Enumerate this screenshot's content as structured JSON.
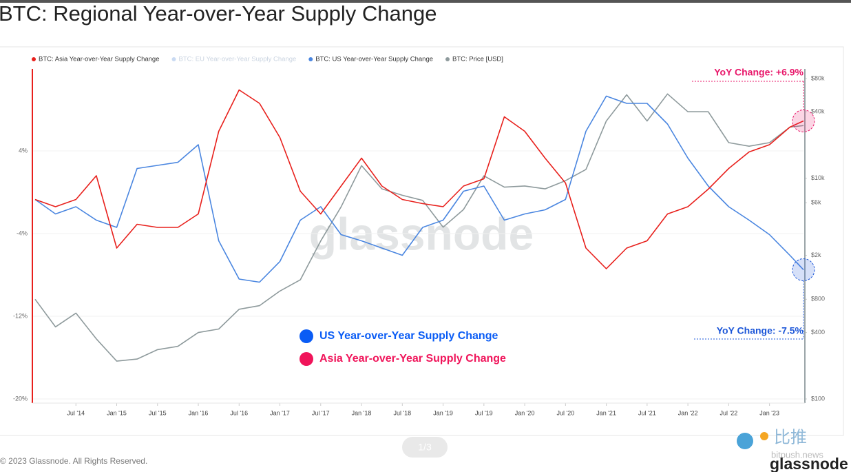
{
  "chart_data": {
    "type": "line",
    "title": "BTC: Regional Year-over-Year Supply Change",
    "watermark": "glassnode",
    "x": [
      "2014-01",
      "2014-04",
      "2014-07",
      "2014-10",
      "2015-01",
      "2015-04",
      "2015-07",
      "2015-10",
      "2016-01",
      "2016-04",
      "2016-07",
      "2016-10",
      "2017-01",
      "2017-04",
      "2017-07",
      "2017-10",
      "2018-01",
      "2018-04",
      "2018-07",
      "2018-10",
      "2019-01",
      "2019-04",
      "2019-07",
      "2019-10",
      "2020-01",
      "2020-04",
      "2020-07",
      "2020-10",
      "2021-01",
      "2021-04",
      "2021-07",
      "2021-10",
      "2022-01",
      "2022-04",
      "2022-07",
      "2022-10",
      "2023-01",
      "2023-04",
      "2023-06"
    ],
    "xlim": [
      "2014-01",
      "2023-06"
    ],
    "xticks": [
      {
        "value": "2014-07",
        "label": "Jul '14"
      },
      {
        "value": "2015-01",
        "label": "Jan '15"
      },
      {
        "value": "2015-07",
        "label": "Jul '15"
      },
      {
        "value": "2016-01",
        "label": "Jan '16"
      },
      {
        "value": "2016-07",
        "label": "Jul '16"
      },
      {
        "value": "2017-01",
        "label": "Jan '17"
      },
      {
        "value": "2017-07",
        "label": "Jul '17"
      },
      {
        "value": "2018-01",
        "label": "Jan '18"
      },
      {
        "value": "2018-07",
        "label": "Jul '18"
      },
      {
        "value": "2019-01",
        "label": "Jan '19"
      },
      {
        "value": "2019-07",
        "label": "Jul '19"
      },
      {
        "value": "2020-01",
        "label": "Jan '20"
      },
      {
        "value": "2020-07",
        "label": "Jul '20"
      },
      {
        "value": "2021-01",
        "label": "Jan '21"
      },
      {
        "value": "2021-07",
        "label": "Jul '21"
      },
      {
        "value": "2022-01",
        "label": "Jan '22"
      },
      {
        "value": "2022-07",
        "label": "Jul '22"
      },
      {
        "value": "2023-01",
        "label": "Jan '23"
      }
    ],
    "ylim": [
      -20,
      11.6
    ],
    "yticks": [
      {
        "value": 4,
        "label": "4%"
      },
      {
        "value": -4,
        "label": "-4%"
      },
      {
        "value": -12,
        "label": "-12%"
      },
      {
        "value": -20,
        "label": "-20%"
      }
    ],
    "y2lim": [
      100,
      91000
    ],
    "y2scale": "log",
    "y2ticks": [
      {
        "value": 100,
        "label": "$100"
      },
      {
        "value": 400,
        "label": "$400"
      },
      {
        "value": 800,
        "label": "$800"
      },
      {
        "value": 2000,
        "label": "$2k"
      },
      {
        "value": 6000,
        "label": "$6k"
      },
      {
        "value": 10000,
        "label": "$10k"
      },
      {
        "value": 40000,
        "label": "$40k"
      },
      {
        "value": 80000,
        "label": "$80k"
      }
    ],
    "grid": true,
    "legend": "top-left",
    "series": [
      {
        "name": "BTC: Asia Year-over-Year Supply Change",
        "color": "#e8201c",
        "values": [
          -0.7,
          -1.4,
          -0.7,
          1.6,
          -5.4,
          -3.1,
          -3.4,
          -3.4,
          -2.1,
          5.9,
          9.9,
          8.6,
          5.3,
          0.1,
          -2.1,
          0.6,
          3.3,
          0.6,
          -0.7,
          -1.1,
          -1.4,
          0.6,
          1.3,
          7.3,
          5.9,
          3.3,
          0.9,
          -5.4,
          -7.4,
          -5.4,
          -4.7,
          -2.1,
          -1.4,
          0.3,
          2.3,
          3.9,
          4.6,
          6.3,
          6.9
        ]
      },
      {
        "name": "BTC: EU Year-over-Year Supply Change",
        "color": "#a9c8f0",
        "hidden": true
      },
      {
        "name": "BTC: US Year-over-Year Supply Change",
        "color": "#4a86e0",
        "values": [
          -0.7,
          -2.1,
          -1.4,
          -2.7,
          -3.4,
          2.3,
          2.6,
          2.9,
          4.6,
          -4.7,
          -8.4,
          -8.7,
          -6.7,
          -2.7,
          -1.4,
          -4.1,
          -4.7,
          -5.4,
          -6.1,
          -3.4,
          -2.7,
          0.1,
          0.6,
          -2.7,
          -2.1,
          -1.7,
          -0.7,
          5.9,
          9.3,
          8.6,
          8.6,
          6.6,
          3.3,
          0.6,
          -1.4,
          -2.7,
          -4.1,
          -6.1,
          -7.5
        ]
      },
      {
        "name": "BTC: Price [USD]",
        "color": "#8e9a9c",
        "axis": "y2",
        "values": [
          800,
          450,
          600,
          350,
          220,
          230,
          280,
          300,
          400,
          430,
          650,
          700,
          950,
          1200,
          2700,
          5500,
          13000,
          8000,
          7000,
          6300,
          3600,
          5200,
          10500,
          8300,
          8500,
          8000,
          9500,
          12000,
          33000,
          57000,
          33000,
          58000,
          40000,
          40000,
          21000,
          19500,
          21000,
          29000,
          30000
        ]
      }
    ],
    "annotations": [
      {
        "text": "YoY Change: +6.9%",
        "series": 0,
        "color": "#e8176a"
      },
      {
        "text": "YoY Change: -7.5%",
        "series": 2,
        "color": "#1a55d8"
      }
    ],
    "callout_legend": [
      {
        "text": "US Year-over-Year Supply Change",
        "color": "#0a5cf5"
      },
      {
        "text": "Asia Year-over-Year Supply Change",
        "color": "#f0145a"
      }
    ]
  },
  "footer": {
    "copyright": "© 2023 Glassnode. All Rights Reserved.",
    "pager": "1/3",
    "logo": "glassnode",
    "source_cn": "比推",
    "source_site": "bitpush.news"
  }
}
